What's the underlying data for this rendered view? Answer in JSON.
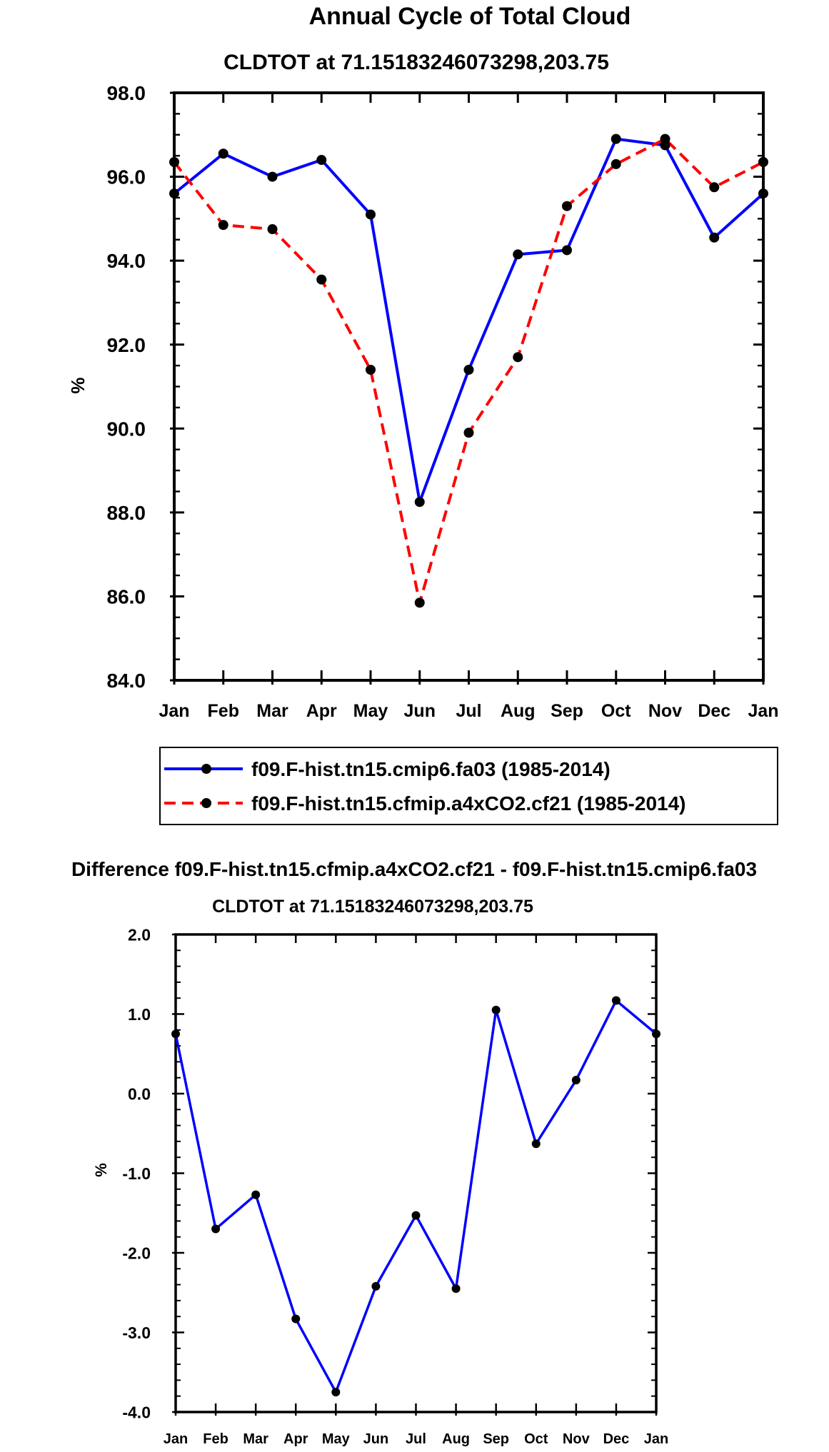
{
  "chart_data": [
    {
      "type": "line",
      "title": "Annual Cycle of Total Cloud",
      "subtitle": "CLDTOT at 71.15183246073298,203.75",
      "xlabel": "",
      "ylabel": "%",
      "categories": [
        "Jan",
        "Feb",
        "Mar",
        "Apr",
        "May",
        "Jun",
        "Jul",
        "Aug",
        "Sep",
        "Oct",
        "Nov",
        "Dec",
        "Jan"
      ],
      "ylim": [
        84.0,
        98.0
      ],
      "yticks": [
        "84.0",
        "86.0",
        "88.0",
        "90.0",
        "92.0",
        "94.0",
        "96.0",
        "98.0"
      ],
      "series": [
        {
          "name": "f09.F-hist.tn15.cmip6.fa03 (1985-2014)",
          "color": "#0000ff",
          "dash": "solid",
          "values": [
            95.6,
            96.55,
            96.0,
            96.4,
            95.1,
            88.25,
            91.4,
            94.15,
            94.25,
            96.9,
            96.75,
            94.55,
            95.6
          ]
        },
        {
          "name": "f09.F-hist.tn15.cfmip.a4xCO2.cf21 (1985-2014)",
          "color": "#ff0000",
          "dash": "dashed",
          "values": [
            96.35,
            94.85,
            94.75,
            93.55,
            91.4,
            85.85,
            89.9,
            91.7,
            95.3,
            96.3,
            96.9,
            95.75,
            96.35
          ]
        }
      ],
      "legend": "bottom"
    },
    {
      "type": "line",
      "title": "Difference f09.F-hist.tn15.cfmip.a4xCO2.cf21 - f09.F-hist.tn15.cmip6.fa03",
      "subtitle": "CLDTOT at 71.15183246073298,203.75",
      "xlabel": "",
      "ylabel": "%",
      "categories": [
        "Jan",
        "Feb",
        "Mar",
        "Apr",
        "May",
        "Jun",
        "Jul",
        "Aug",
        "Sep",
        "Oct",
        "Nov",
        "Dec",
        "Jan"
      ],
      "ylim": [
        -4.0,
        2.0
      ],
      "yticks": [
        "-4.0",
        "-3.0",
        "-2.0",
        "-1.0",
        "0.0",
        "1.0",
        "2.0"
      ],
      "series": [
        {
          "name": "Difference",
          "color": "#0000ff",
          "dash": "solid",
          "values": [
            0.75,
            -1.7,
            -1.27,
            -2.83,
            -3.75,
            -2.42,
            -1.53,
            -2.45,
            1.05,
            -0.63,
            0.17,
            1.17,
            0.75
          ]
        }
      ]
    }
  ]
}
